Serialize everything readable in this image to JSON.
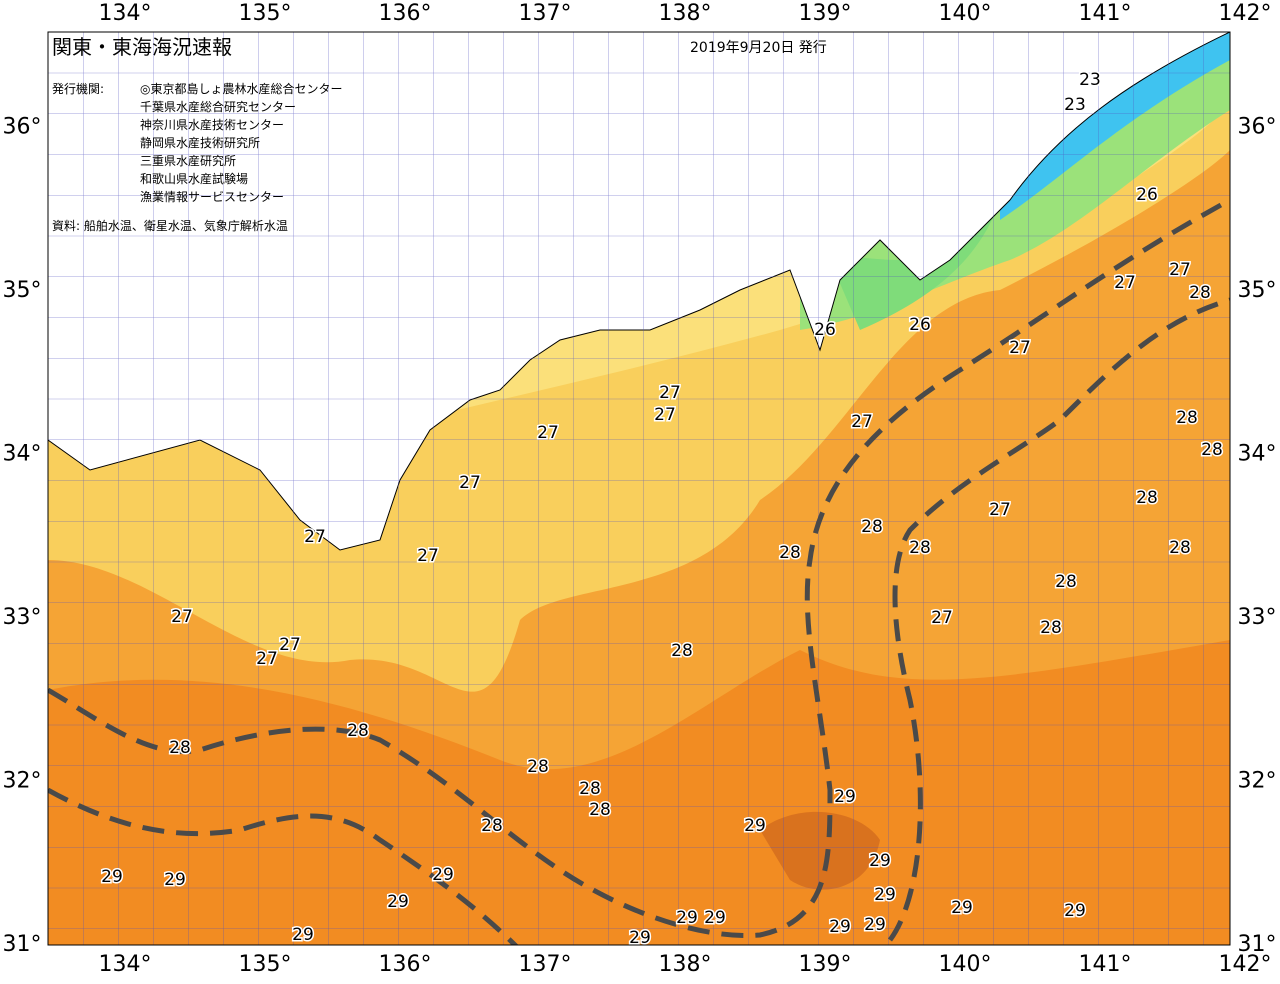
{
  "header": {
    "title": "関東・東海海況速報",
    "date": "2019年9月20日 発行",
    "issuer_label": "発行機関:",
    "issuers": [
      "◎東京都島しょ農林水産総合センター",
      "千葉県水産総合研究センター",
      "神奈川県水産技術センター",
      "静岡県水産技術研究所",
      "三重県水産研究所",
      "和歌山県水産試験場",
      "漁業情報サービスセンター"
    ],
    "source": "資料: 船舶水温、衛星水温、気象庁解析水温"
  },
  "map": {
    "lon_labels": [
      "134°",
      "135°",
      "136°",
      "137°",
      "138°",
      "139°",
      "140°",
      "141°",
      "142°"
    ],
    "lat_labels": [
      "31°",
      "32°",
      "33°",
      "34°",
      "35°",
      "36°"
    ],
    "contour_labels": [
      23,
      23,
      26,
      26,
      26,
      27,
      27,
      27,
      27,
      27,
      27,
      27,
      27,
      27,
      27,
      27,
      27,
      27,
      27,
      27,
      28,
      28,
      28,
      28,
      28,
      28,
      28,
      28,
      28,
      28,
      28,
      28,
      28,
      28,
      28,
      28,
      28,
      29,
      29,
      29,
      29,
      29,
      29,
      29,
      29,
      29,
      29,
      29,
      29,
      29,
      29,
      29,
      29
    ]
  }
}
